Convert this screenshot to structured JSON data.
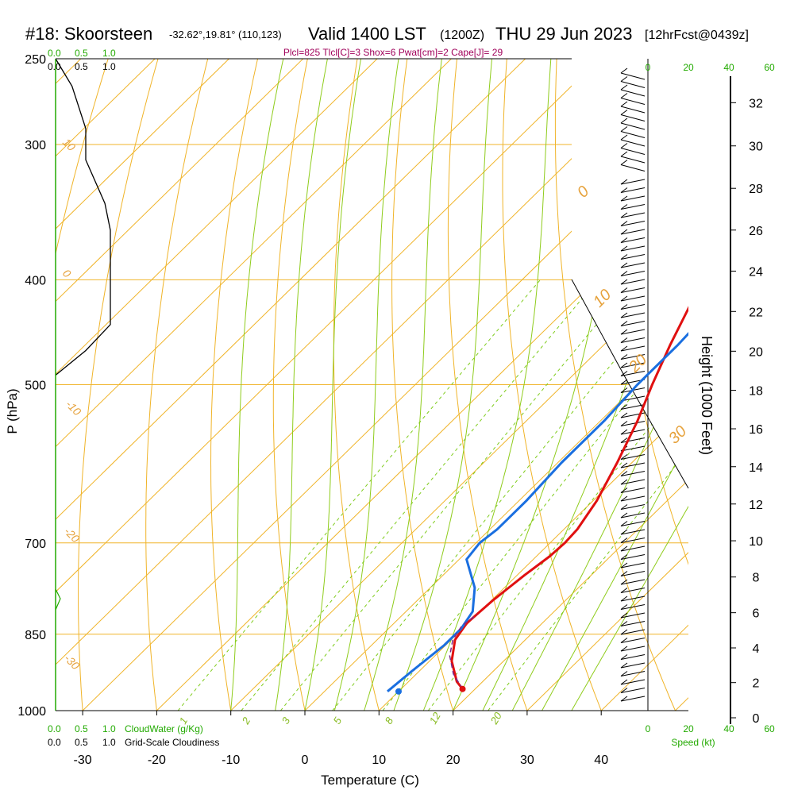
{
  "header": {
    "station": "#18: Skoorsteen",
    "coords": "-32.62°,19.81° (110,123)",
    "valid": "Valid 1400 LST",
    "utc": "(1200Z)",
    "date": "THU 29 Jun 2023",
    "forecast": "[12hrFcst@0439z]",
    "params": "Plcl=825 Tlcl[C]=3 Shox=6 Pwat[cm]=2 Cape[J]= 29"
  },
  "colors": {
    "isotherm": "#f0b429",
    "dry_adiabat": "#f0b429",
    "moist_adiabat": "#8fcc1c",
    "mixing_ratio": "#7fcc1c",
    "temperature": "#e01010",
    "dewpoint": "#1a6fe0",
    "parcel": "#7a2a8a",
    "cloud": "#000000",
    "green_axis": "#22aa00"
  },
  "cloud_axis": {
    "top_green": [
      "0.0",
      "0.5",
      "1.0"
    ],
    "top_black": [
      "0.0",
      "0.5",
      "1.0"
    ],
    "bottom_green": [
      "0.0",
      "0.5",
      "1.0"
    ],
    "bottom_black": [
      "0.0",
      "0.5",
      "1.0"
    ],
    "cloudwater_label": "CloudWater (g/Kg)",
    "cloudiness_label": "Grid-Scale Cloudiness"
  },
  "wind_axis": {
    "ticks": [
      "0",
      "20",
      "40",
      "60"
    ],
    "label": "Speed (kt)"
  },
  "chart_data": {
    "type": "line",
    "title": "",
    "xlabel": "Temperature (C)",
    "ylabel": "P (hPa)",
    "y2label": "Height (1000 Feet)",
    "xlim": [
      -35,
      45
    ],
    "ylim": [
      1000,
      250
    ],
    "x_ticks": [
      -30,
      -20,
      -10,
      0,
      10,
      20,
      30,
      40
    ],
    "pressure_ticks": [
      250,
      300,
      400,
      500,
      700,
      850,
      1000
    ],
    "height_ticks": [
      0,
      2,
      4,
      6,
      8,
      10,
      12,
      14,
      16,
      18,
      20,
      22,
      24,
      26,
      28,
      30,
      32
    ],
    "isotherm_labels": [
      "10",
      "0",
      "-10",
      "-20",
      "-30",
      "0",
      "10",
      "20",
      "30"
    ],
    "mixing_ratio_labels": [
      "1",
      "2",
      "3",
      "5",
      "8",
      "12",
      "20"
    ],
    "series": [
      {
        "name": "Temperature",
        "values": [
          [
            18.3,
            955
          ],
          [
            16.5,
            940
          ],
          [
            13.0,
            900
          ],
          [
            10.5,
            860
          ],
          [
            9.8,
            830
          ],
          [
            10.2,
            790
          ],
          [
            11.0,
            750
          ],
          [
            11.8,
            720
          ],
          [
            12.0,
            700
          ],
          [
            11.8,
            680
          ],
          [
            10.5,
            640
          ],
          [
            8.0,
            590
          ],
          [
            5.0,
            540
          ],
          [
            2.0,
            500
          ],
          [
            -1.0,
            460
          ],
          [
            -4.0,
            420
          ],
          [
            -6.0,
            395
          ],
          [
            -8.0,
            370
          ],
          [
            -11.0,
            345
          ],
          [
            -14.5,
            320
          ],
          [
            -18.5,
            295
          ],
          [
            -21.5,
            275
          ],
          [
            -21.5,
            260
          ],
          [
            -22.0,
            250
          ]
        ]
      },
      {
        "name": "Dewpoint",
        "values": [
          [
            8.5,
            960
          ],
          [
            9.0,
            920
          ],
          [
            9.8,
            870
          ],
          [
            9.8,
            840
          ],
          [
            9.0,
            810
          ],
          [
            6.0,
            770
          ],
          [
            1.0,
            725
          ],
          [
            0.5,
            700
          ],
          [
            1.0,
            680
          ],
          [
            1.0,
            640
          ],
          [
            0.5,
            590
          ],
          [
            0.5,
            540
          ],
          [
            0.0,
            500
          ],
          [
            0.0,
            460
          ],
          [
            -0.5,
            420
          ],
          [
            -1.0,
            410
          ],
          [
            -3.0,
            395
          ],
          [
            -6.0,
            380
          ],
          [
            -9.5,
            350
          ],
          [
            -14.0,
            315
          ],
          [
            -18.5,
            285
          ],
          [
            -21.5,
            265
          ],
          [
            -22.5,
            250
          ]
        ]
      },
      {
        "name": "Parcel",
        "values": [
          [
            18.3,
            955
          ],
          [
            15.0,
            925
          ],
          [
            12.0,
            890
          ],
          [
            10.2,
            860
          ],
          [
            9.5,
            835
          ],
          [
            10.0,
            815
          ]
        ]
      },
      {
        "name": "Cloudiness",
        "values": [
          [
            0.0,
            250
          ],
          [
            0.3,
            265
          ],
          [
            0.55,
            290
          ],
          [
            0.55,
            310
          ],
          [
            0.9,
            340
          ],
          [
            1.0,
            360
          ],
          [
            1.0,
            440
          ],
          [
            0.55,
            465
          ],
          [
            0.0,
            490
          ]
        ]
      }
    ],
    "surface_dewpoint_marker": [
      10.0,
      960
    ],
    "surface_temperature_marker": [
      18.3,
      955
    ]
  }
}
